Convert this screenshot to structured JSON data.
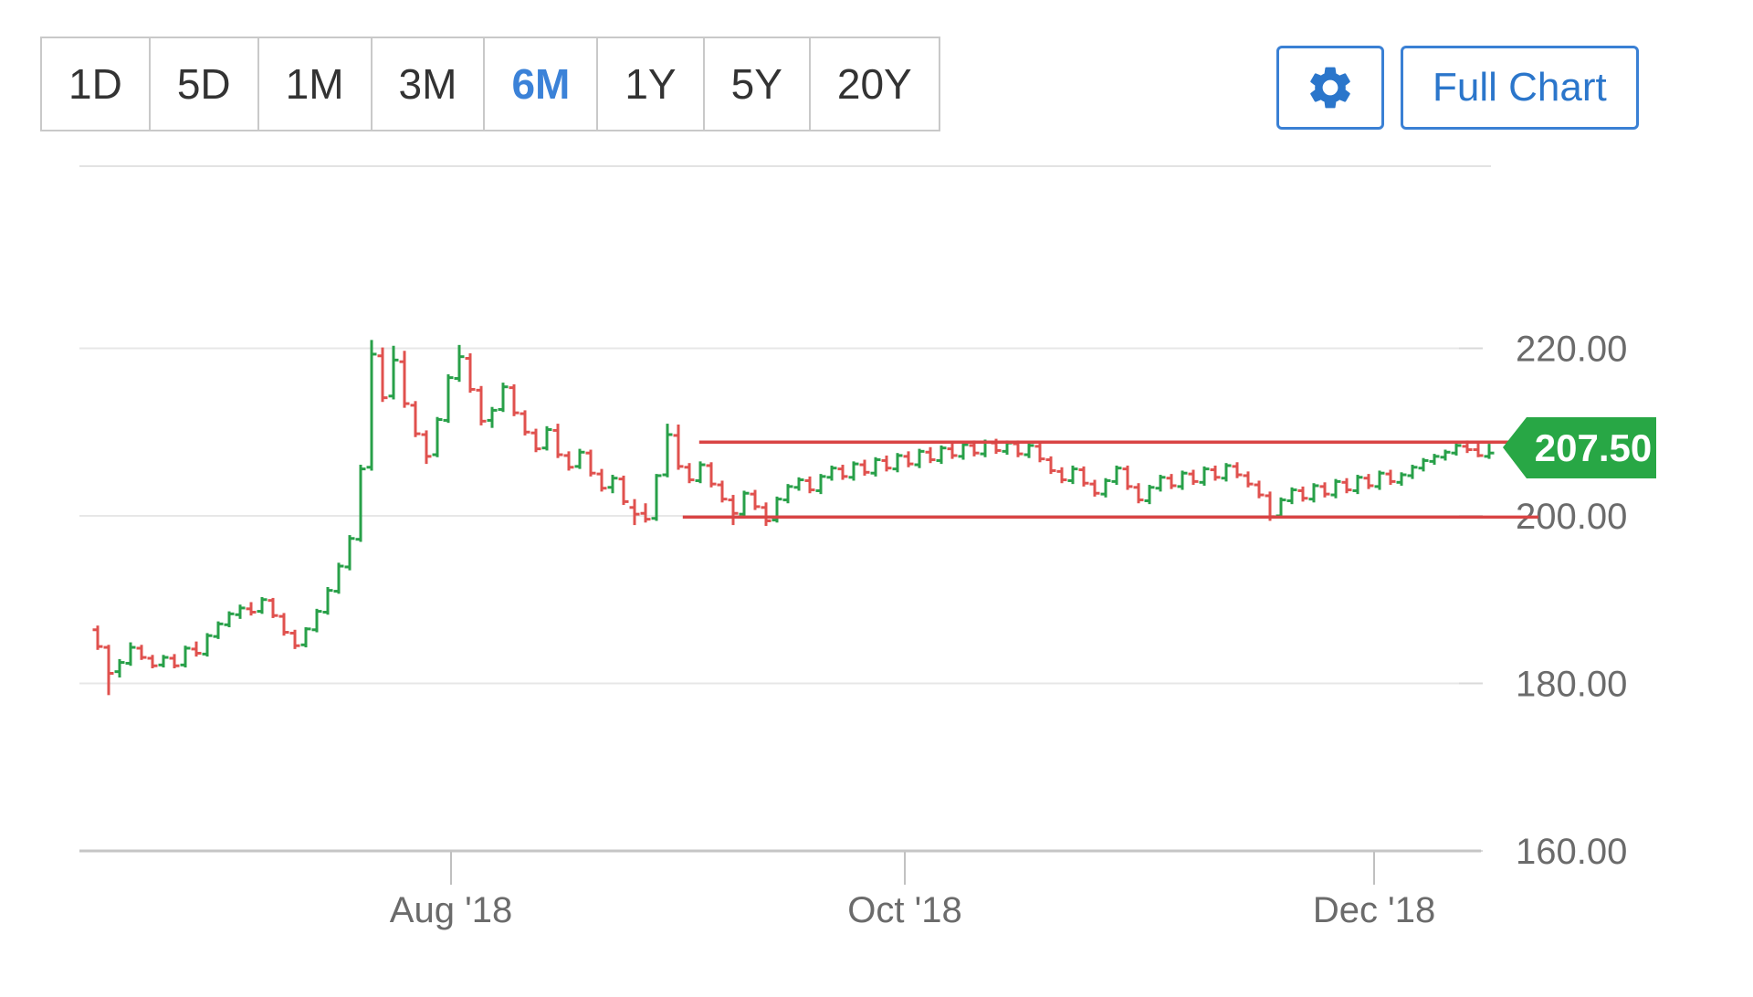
{
  "toolbar": {
    "ranges": [
      {
        "label": "1D",
        "selected": false
      },
      {
        "label": "5D",
        "selected": false
      },
      {
        "label": "1M",
        "selected": false
      },
      {
        "label": "3M",
        "selected": false
      },
      {
        "label": "6M",
        "selected": true
      },
      {
        "label": "1Y",
        "selected": false
      },
      {
        "label": "5Y",
        "selected": false
      },
      {
        "label": "20Y",
        "selected": false
      }
    ],
    "icons": {
      "settings": "gear-icon"
    },
    "full_chart_label": "Full Chart",
    "accent_color": "#2b76cb"
  },
  "quote": {
    "last": "207.50",
    "badge_color": "#28a745"
  },
  "chart_data": {
    "type": "ohlc_bar",
    "title": "",
    "xlabel": "",
    "ylabel": "",
    "x_ticks": [
      {
        "label": "Aug '18",
        "index": 32.25
      },
      {
        "label": "Oct '18",
        "index": 73.67
      },
      {
        "label": "Dec '18",
        "index": 116.5
      }
    ],
    "y_axis": {
      "min": 160,
      "max": 222,
      "ticks": [
        {
          "value": 220,
          "label": "220.00"
        },
        {
          "value": 200,
          "label": "200.00"
        },
        {
          "value": 180,
          "label": "180.00"
        },
        {
          "value": 160,
          "label": "160.00"
        }
      ],
      "grid": true,
      "label_side": "right"
    },
    "trendlines": [
      {
        "name": "resistance",
        "price": 208.8,
        "start_index": 54.9
      },
      {
        "name": "support",
        "price": 199.85,
        "start_index": 53.4
      }
    ],
    "colors": {
      "up": "#28a049",
      "down": "#e0514e",
      "trendline": "#d94444",
      "grid": "#e7e7e7",
      "axis_line": "#c6c6c6",
      "tick": "#c0c0c0",
      "label": "#6b6b6b"
    },
    "candles": [
      [
        186.4,
        186.9,
        184.0,
        184.4
      ],
      [
        184.3,
        184.6,
        178.6,
        181.2
      ],
      [
        181.4,
        182.9,
        180.7,
        182.5
      ],
      [
        182.4,
        184.9,
        182.1,
        184.3
      ],
      [
        184.2,
        184.6,
        182.8,
        183.1
      ],
      [
        183.0,
        183.4,
        181.8,
        182.1
      ],
      [
        182.2,
        183.4,
        181.9,
        183.1
      ],
      [
        183.0,
        183.5,
        181.8,
        182.1
      ],
      [
        182.2,
        184.5,
        181.9,
        184.2
      ],
      [
        184.1,
        185.0,
        183.2,
        183.6
      ],
      [
        183.5,
        186.0,
        183.2,
        185.7
      ],
      [
        185.6,
        187.4,
        185.3,
        187.1
      ],
      [
        187.0,
        188.6,
        186.7,
        188.3
      ],
      [
        188.2,
        189.4,
        187.7,
        189.0
      ],
      [
        188.9,
        189.7,
        188.1,
        188.5
      ],
      [
        188.6,
        190.3,
        188.3,
        190.0
      ],
      [
        189.9,
        190.2,
        187.8,
        188.1
      ],
      [
        188.0,
        188.4,
        185.7,
        186.1
      ],
      [
        186.0,
        186.4,
        184.1,
        184.5
      ],
      [
        184.6,
        186.7,
        184.3,
        186.5
      ],
      [
        186.4,
        188.9,
        186.1,
        188.6
      ],
      [
        188.5,
        191.5,
        188.2,
        191.1
      ],
      [
        191.0,
        194.4,
        190.7,
        194.0
      ],
      [
        193.9,
        197.7,
        193.5,
        197.3
      ],
      [
        197.2,
        206.1,
        196.9,
        205.6
      ],
      [
        205.8,
        221.0,
        205.4,
        219.3
      ],
      [
        219.1,
        220.1,
        213.6,
        214.1
      ],
      [
        214.3,
        220.3,
        213.9,
        218.6
      ],
      [
        218.4,
        219.7,
        212.9,
        213.4
      ],
      [
        213.2,
        213.7,
        209.4,
        209.8
      ],
      [
        209.7,
        210.2,
        206.2,
        207.1
      ],
      [
        207.3,
        211.8,
        207.0,
        211.5
      ],
      [
        211.4,
        216.9,
        211.1,
        216.5
      ],
      [
        216.4,
        220.4,
        216.0,
        219.0
      ],
      [
        218.8,
        219.4,
        214.7,
        215.1
      ],
      [
        215.0,
        215.5,
        210.8,
        211.3
      ],
      [
        211.4,
        213.0,
        210.5,
        212.6
      ],
      [
        212.7,
        215.9,
        212.4,
        215.4
      ],
      [
        215.3,
        215.7,
        211.9,
        212.3
      ],
      [
        212.2,
        212.6,
        209.6,
        210.0
      ],
      [
        209.9,
        210.4,
        207.6,
        208.0
      ],
      [
        208.1,
        210.7,
        207.8,
        210.3
      ],
      [
        210.2,
        211.0,
        206.9,
        207.3
      ],
      [
        207.2,
        207.7,
        205.4,
        205.8
      ],
      [
        205.9,
        208.0,
        205.6,
        207.6
      ],
      [
        207.5,
        207.9,
        204.7,
        205.1
      ],
      [
        205.0,
        205.6,
        202.9,
        203.3
      ],
      [
        203.4,
        204.9,
        202.7,
        204.5
      ],
      [
        204.4,
        204.8,
        201.3,
        201.7
      ],
      [
        201.0,
        202.0,
        198.9,
        200.2
      ],
      [
        200.3,
        201.5,
        199.2,
        199.6
      ],
      [
        199.7,
        205.0,
        199.4,
        204.8
      ],
      [
        204.9,
        211.0,
        204.6,
        209.7
      ],
      [
        209.6,
        210.9,
        205.5,
        205.9
      ],
      [
        205.8,
        206.3,
        203.9,
        204.3
      ],
      [
        204.2,
        206.5,
        203.9,
        206.1
      ],
      [
        206.0,
        206.4,
        203.4,
        203.8
      ],
      [
        203.7,
        204.2,
        201.6,
        202.0
      ],
      [
        201.9,
        202.5,
        198.9,
        200.3
      ],
      [
        200.2,
        203.0,
        199.9,
        202.7
      ],
      [
        202.6,
        203.1,
        200.7,
        201.1
      ],
      [
        201.0,
        201.6,
        198.8,
        199.4
      ],
      [
        199.5,
        202.3,
        199.2,
        202.0
      ],
      [
        201.9,
        203.8,
        201.5,
        203.5
      ],
      [
        203.4,
        204.6,
        203.0,
        204.3
      ],
      [
        204.2,
        204.7,
        202.7,
        203.1
      ],
      [
        203.0,
        205.0,
        202.6,
        204.7
      ],
      [
        204.6,
        206.0,
        204.2,
        205.7
      ],
      [
        205.6,
        206.1,
        204.3,
        204.7
      ],
      [
        204.6,
        206.5,
        204.2,
        206.2
      ],
      [
        206.1,
        206.7,
        204.8,
        205.2
      ],
      [
        205.1,
        207.0,
        204.7,
        206.7
      ],
      [
        206.6,
        207.2,
        205.3,
        205.7
      ],
      [
        205.6,
        207.5,
        205.2,
        207.2
      ],
      [
        207.1,
        207.7,
        205.8,
        206.2
      ],
      [
        206.1,
        208.0,
        205.7,
        207.7
      ],
      [
        207.6,
        208.2,
        206.3,
        206.7
      ],
      [
        206.6,
        208.4,
        206.2,
        208.1
      ],
      [
        208.0,
        208.7,
        206.8,
        207.2
      ],
      [
        207.1,
        208.9,
        206.7,
        208.5
      ],
      [
        208.4,
        209.0,
        207.1,
        207.5
      ],
      [
        207.4,
        209.1,
        207.0,
        208.8
      ],
      [
        208.7,
        209.2,
        207.4,
        207.8
      ],
      [
        207.7,
        209.0,
        207.3,
        208.7
      ],
      [
        208.6,
        209.0,
        207.0,
        207.4
      ],
      [
        207.3,
        208.8,
        206.9,
        208.4
      ],
      [
        208.3,
        208.7,
        206.4,
        206.8
      ],
      [
        206.7,
        207.1,
        205.0,
        205.4
      ],
      [
        205.3,
        205.8,
        203.9,
        204.3
      ],
      [
        204.2,
        206.0,
        203.8,
        205.6
      ],
      [
        205.5,
        205.9,
        203.5,
        203.9
      ],
      [
        203.8,
        204.3,
        202.3,
        202.7
      ],
      [
        202.6,
        204.5,
        202.2,
        204.2
      ],
      [
        204.1,
        206.0,
        203.7,
        205.7
      ],
      [
        205.6,
        206.0,
        203.1,
        203.5
      ],
      [
        203.4,
        203.9,
        201.5,
        201.9
      ],
      [
        201.8,
        203.7,
        201.4,
        203.4
      ],
      [
        203.3,
        204.9,
        202.9,
        204.6
      ],
      [
        204.5,
        205.0,
        203.2,
        203.6
      ],
      [
        203.5,
        205.4,
        203.1,
        205.1
      ],
      [
        205.0,
        205.5,
        203.7,
        204.1
      ],
      [
        204.0,
        205.9,
        203.6,
        205.6
      ],
      [
        205.5,
        206.0,
        204.2,
        204.6
      ],
      [
        204.5,
        206.3,
        204.1,
        206.0
      ],
      [
        205.9,
        206.4,
        204.5,
        204.9
      ],
      [
        204.8,
        205.3,
        203.4,
        203.8
      ],
      [
        203.7,
        204.2,
        202.1,
        202.5
      ],
      [
        202.4,
        202.9,
        199.4,
        199.9
      ],
      [
        200.0,
        202.2,
        199.7,
        201.9
      ],
      [
        201.8,
        203.4,
        201.4,
        203.1
      ],
      [
        203.0,
        203.5,
        201.7,
        202.1
      ],
      [
        202.0,
        203.9,
        201.6,
        203.6
      ],
      [
        203.5,
        204.0,
        202.2,
        202.6
      ],
      [
        202.5,
        204.4,
        202.1,
        204.1
      ],
      [
        204.0,
        204.5,
        202.7,
        203.1
      ],
      [
        203.0,
        204.9,
        202.6,
        204.6
      ],
      [
        204.5,
        205.0,
        203.2,
        203.6
      ],
      [
        203.5,
        205.4,
        203.1,
        205.1
      ],
      [
        205.0,
        205.5,
        203.7,
        204.1
      ],
      [
        204.0,
        205.2,
        203.6,
        204.9
      ],
      [
        204.8,
        206.1,
        204.4,
        205.8
      ],
      [
        205.7,
        206.9,
        205.3,
        206.6
      ],
      [
        206.5,
        207.4,
        206.1,
        207.1
      ],
      [
        207.0,
        207.9,
        206.6,
        207.6
      ],
      [
        207.5,
        208.7,
        207.2,
        208.4
      ],
      [
        208.3,
        209.0,
        207.5,
        207.9
      ],
      [
        207.9,
        208.8,
        207.0,
        207.2
      ],
      [
        207.1,
        208.6,
        206.8,
        207.5
      ]
    ]
  }
}
